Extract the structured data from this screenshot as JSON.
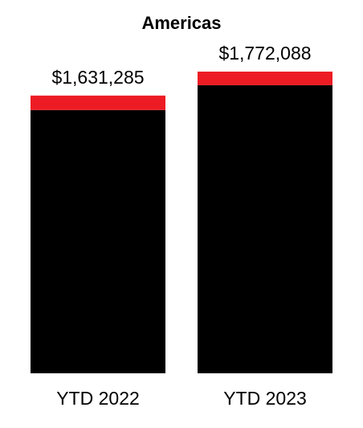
{
  "chart_data": {
    "type": "stacked-bar",
    "title": "Americas",
    "categories": [
      "YTD 2022",
      "YTD 2023"
    ],
    "series": [
      {
        "color": "#000000",
        "values": [
          1546285,
          1692088
        ]
      },
      {
        "color": "#ed1c24",
        "values": [
          85000,
          80000
        ]
      }
    ],
    "totals": [
      1631285,
      1772088
    ],
    "total_labels": [
      "$1,631,285",
      "$1,772,088"
    ]
  }
}
